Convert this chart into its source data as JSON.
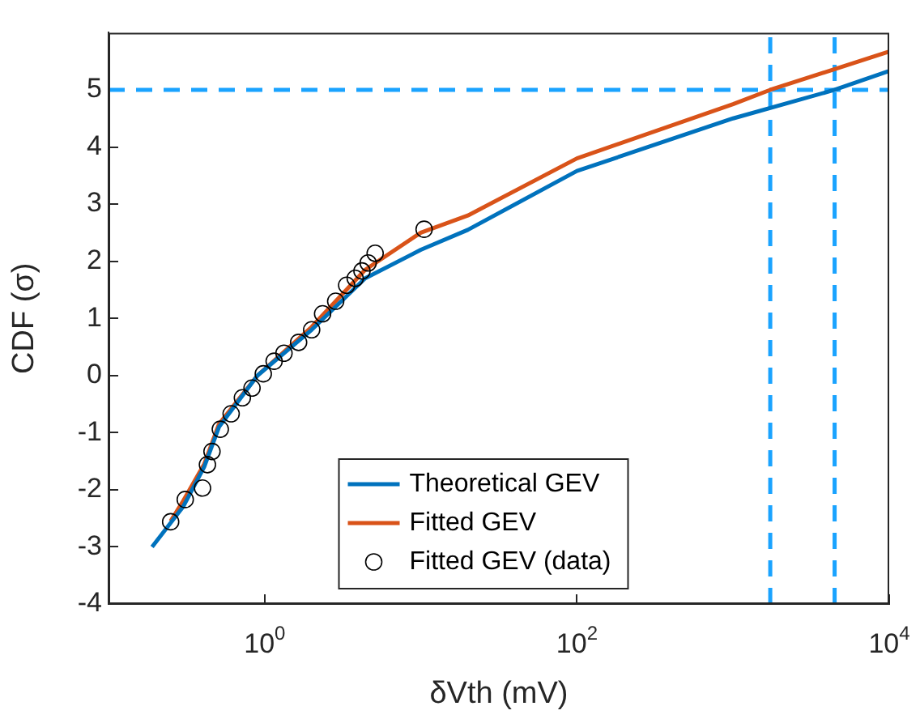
{
  "chart_data": {
    "type": "line",
    "xlabel": "δVth (mV)",
    "ylabel": "CDF (σ)",
    "log": "x",
    "xlim": [
      0.1,
      10000
    ],
    "xticks": [
      {
        "value": 1,
        "label": "10$^{0}$"
      },
      {
        "value": 100,
        "label": "10$^{2}$"
      },
      {
        "value": 10000,
        "label": "10$^{4}$"
      }
    ],
    "ylim": [
      -4,
      6
    ],
    "yticks": [
      -4,
      -3,
      -2,
      -1,
      0,
      1,
      2,
      3,
      4,
      5
    ],
    "grid": false,
    "legend": "bottom",
    "line_style": "solid",
    "series": [
      {
        "name": "Theoretical GEV",
        "color": "#0072bd",
        "x": [
          0.19,
          0.3,
          0.41,
          0.51,
          0.9,
          2,
          4.4,
          10,
          20,
          100,
          1000,
          4470,
          10000
        ],
        "values": [
          -3,
          -2.3,
          -1.6,
          -0.9,
          0,
          0.8,
          1.7,
          2.2,
          2.55,
          3.58,
          4.5,
          5,
          5.33
        ]
      },
      {
        "name": "Fitted GEV",
        "color": "#d95319",
        "x": [
          0.25,
          0.3,
          0.41,
          0.51,
          0.9,
          2,
          4.4,
          10,
          20,
          100,
          1000,
          1730,
          10000
        ],
        "values": [
          -2.55,
          -2.2,
          -1.55,
          -0.85,
          0,
          0.85,
          1.85,
          2.5,
          2.8,
          3.8,
          4.75,
          5,
          5.67
        ]
      },
      {
        "name": "Fitted GEV (data)",
        "color": "#000000",
        "type": "scatter",
        "marker": "circle",
        "x": [
          0.25,
          0.31,
          0.4,
          0.43,
          0.46,
          0.52,
          0.61,
          0.72,
          0.83,
          0.98,
          1.15,
          1.33,
          1.65,
          2,
          2.35,
          2.85,
          3.35,
          3.8,
          4.2,
          4.6,
          5.1,
          10.5
        ],
        "values": [
          -2.56,
          -2.17,
          -1.97,
          -1.56,
          -1.33,
          -0.94,
          -0.67,
          -0.39,
          -0.22,
          0.03,
          0.25,
          0.39,
          0.58,
          0.8,
          1.08,
          1.3,
          1.58,
          1.7,
          1.83,
          1.97,
          2.14,
          2.56
        ]
      }
    ],
    "ref_lines": [
      {
        "axis": "y",
        "value": 5,
        "color": "#1aa3ff",
        "line_style": "dashed"
      },
      {
        "axis": "x",
        "value": 1730,
        "color": "#1aa3ff",
        "line_style": "dashed"
      },
      {
        "axis": "x",
        "value": 4470,
        "color": "#1aa3ff",
        "line_style": "dashed"
      }
    ]
  }
}
